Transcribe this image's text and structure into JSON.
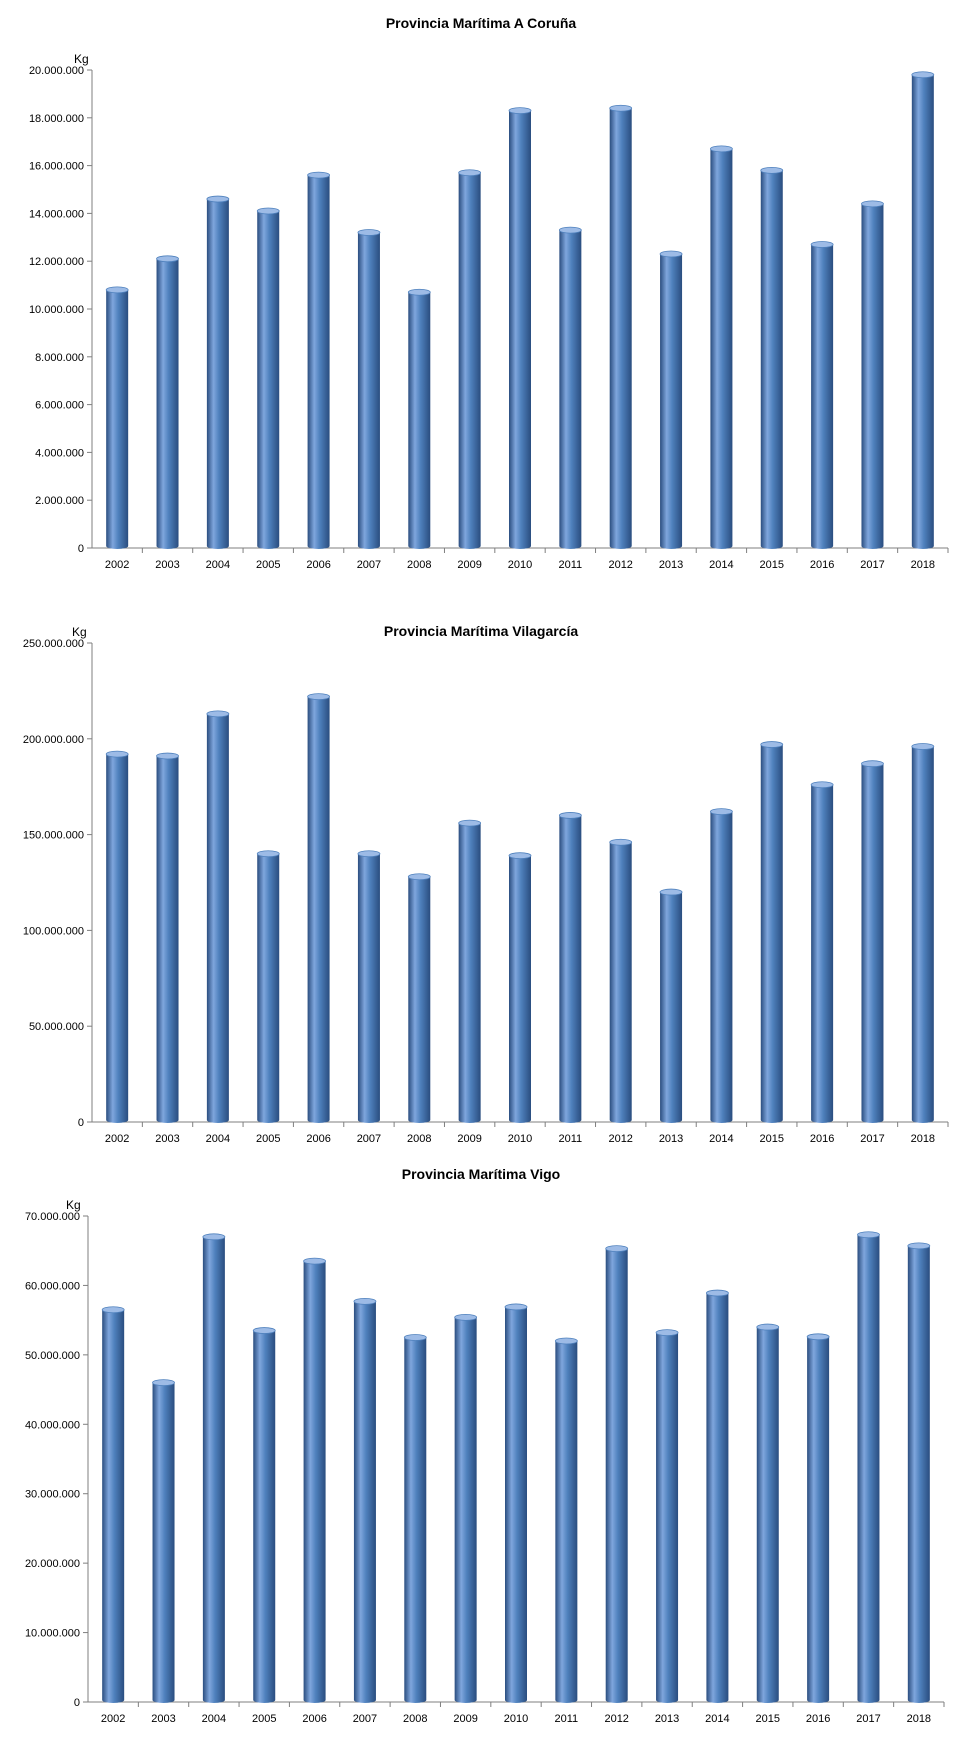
{
  "colors": {
    "bar_light": "#7fa6dd",
    "bar_mid": "#4f81bd",
    "bar_dark": "#2a4d7f",
    "bar_top": "#9dbbe6",
    "axis": "#7f7f7f",
    "text": "#000000"
  },
  "chart_data": [
    {
      "type": "bar",
      "title": "Provincia Marítima A Coruña",
      "ylabel": "Kg",
      "xlabel": "",
      "categories": [
        "2002",
        "2003",
        "2004",
        "2005",
        "2006",
        "2007",
        "2008",
        "2009",
        "2010",
        "2011",
        "2012",
        "2013",
        "2014",
        "2015",
        "2016",
        "2017",
        "2018"
      ],
      "values": [
        10800000,
        12100000,
        14600000,
        14100000,
        15600000,
        13200000,
        10700000,
        15700000,
        18300000,
        13300000,
        18400000,
        12300000,
        16700000,
        15800000,
        12700000,
        14400000,
        19800000
      ],
      "ylim": [
        0,
        20000000
      ],
      "yticks": [
        0,
        2000000,
        4000000,
        6000000,
        8000000,
        10000000,
        12000000,
        14000000,
        16000000,
        18000000,
        20000000
      ],
      "ytick_labels": [
        "0",
        "2.000.000",
        "4.000.000",
        "6.000.000",
        "8.000.000",
        "10.000.000",
        "12.000.000",
        "14.000.000",
        "16.000.000",
        "18.000.000",
        "20.000.000"
      ],
      "grid": false,
      "legend": "none"
    },
    {
      "type": "bar",
      "title": "Provincia Marítima Vilagarcía",
      "ylabel": "Kg",
      "xlabel": "",
      "categories": [
        "2002",
        "2003",
        "2004",
        "2005",
        "2006",
        "2007",
        "2008",
        "2009",
        "2010",
        "2011",
        "2012",
        "2013",
        "2014",
        "2015",
        "2016",
        "2017",
        "2018"
      ],
      "values": [
        192000000,
        191000000,
        213000000,
        140000000,
        222000000,
        140000000,
        128000000,
        156000000,
        139000000,
        160000000,
        146000000,
        120000000,
        162000000,
        197000000,
        176000000,
        187000000,
        196000000
      ],
      "ylim": [
        0,
        250000000
      ],
      "yticks": [
        0,
        50000000,
        100000000,
        150000000,
        200000000,
        250000000
      ],
      "ytick_labels": [
        "0",
        "50.000.000",
        "100.000.000",
        "150.000.000",
        "200.000.000",
        "250.000.000"
      ],
      "grid": false,
      "legend": "none"
    },
    {
      "type": "bar",
      "title": "Provincia Marítima Vigo",
      "ylabel": "Kg",
      "xlabel": "",
      "categories": [
        "2002",
        "2003",
        "2004",
        "2005",
        "2006",
        "2007",
        "2008",
        "2009",
        "2010",
        "2011",
        "2012",
        "2013",
        "2014",
        "2015",
        "2016",
        "2017",
        "2018"
      ],
      "values": [
        56500000,
        46000000,
        67000000,
        53500000,
        63500000,
        57700000,
        52500000,
        55400000,
        56900000,
        52000000,
        65300000,
        53200000,
        58900000,
        54000000,
        52600000,
        67300000,
        65700000
      ],
      "ylim": [
        0,
        70000000
      ],
      "yticks": [
        0,
        10000000,
        20000000,
        30000000,
        40000000,
        50000000,
        60000000,
        70000000
      ],
      "ytick_labels": [
        "0",
        "10.000.000",
        "20.000.000",
        "30.000.000",
        "40.000.000",
        "50.000.000",
        "60.000.000",
        "70.000.000"
      ],
      "grid": false,
      "legend": "none"
    }
  ]
}
